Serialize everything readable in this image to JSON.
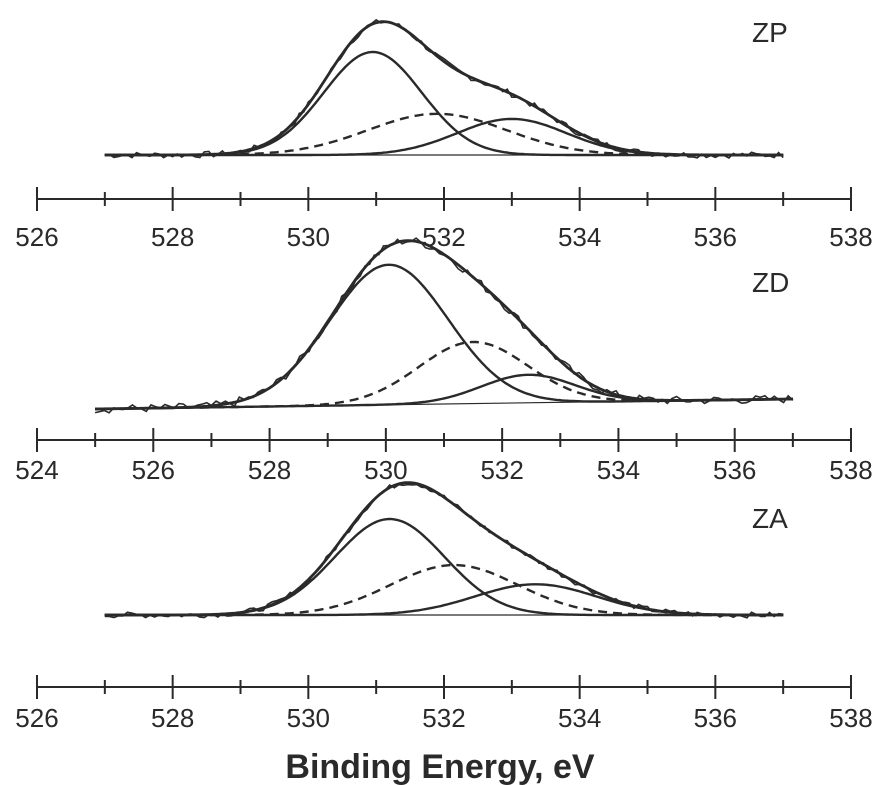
{
  "chart_data": [
    {
      "type": "line",
      "label": "ZP",
      "xlim": [
        526,
        538
      ],
      "tick_labels": [
        "526",
        "528",
        "530",
        "532",
        "534",
        "536",
        "538"
      ],
      "data_x_range": [
        527,
        537
      ],
      "peaks": [
        {
          "style": "solid",
          "center": 530.95,
          "height": 1.0,
          "fwhm": 1.7
        },
        {
          "style": "dashed",
          "center": 531.9,
          "height": 0.4,
          "fwhm": 2.4
        },
        {
          "style": "solid",
          "center": 533.0,
          "height": 0.35,
          "fwhm": 1.9
        }
      ],
      "envelope": "sum",
      "baseline": "flat"
    },
    {
      "type": "line",
      "label": "ZD",
      "xlim": [
        524,
        538
      ],
      "tick_labels": [
        "524",
        "526",
        "528",
        "530",
        "532",
        "534",
        "536",
        "538"
      ],
      "data_x_range": [
        525,
        537
      ],
      "peaks": [
        {
          "style": "solid",
          "center": 530.05,
          "height": 1.0,
          "fwhm": 2.4
        },
        {
          "style": "dashed",
          "center": 531.5,
          "height": 0.44,
          "fwhm": 2.2
        },
        {
          "style": "solid",
          "center": 532.45,
          "height": 0.2,
          "fwhm": 1.9
        }
      ],
      "envelope": "sum",
      "baseline": "sloped"
    },
    {
      "type": "line",
      "label": "ZA",
      "xlim": [
        526,
        538
      ],
      "tick_labels": [
        "526",
        "528",
        "530",
        "532",
        "534",
        "536",
        "538"
      ],
      "data_x_range": [
        527,
        537
      ],
      "peaks": [
        {
          "style": "solid",
          "center": 531.2,
          "height": 1.0,
          "fwhm": 1.9
        },
        {
          "style": "dashed",
          "center": 532.15,
          "height": 0.52,
          "fwhm": 2.2
        },
        {
          "style": "solid",
          "center": 533.35,
          "height": 0.32,
          "fwhm": 2.1
        }
      ],
      "envelope": "sum",
      "baseline": "flat"
    }
  ],
  "xlabel": "Binding Energy, eV"
}
